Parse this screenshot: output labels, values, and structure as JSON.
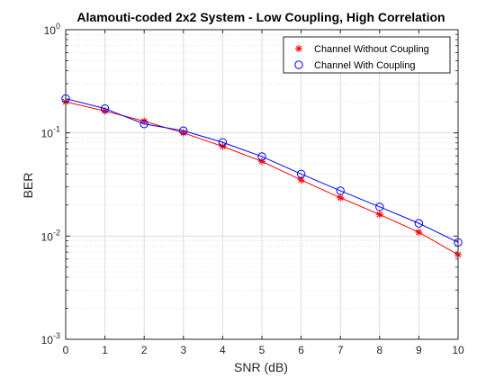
{
  "chart_data": {
    "type": "line",
    "title": "Alamouti-coded 2x2 System - Low Coupling, High Correlation",
    "xlabel": "SNR (dB)",
    "ylabel": "BER",
    "xlim": [
      0,
      10
    ],
    "ylim": [
      0.001,
      1
    ],
    "yscale": "log",
    "grid": true,
    "minor_grid": true,
    "legend_location": "top-right",
    "x": [
      0,
      1,
      2,
      3,
      4,
      5,
      6,
      7,
      8,
      9,
      10
    ],
    "x_tick_labels": [
      "0",
      "1",
      "2",
      "3",
      "4",
      "5",
      "6",
      "7",
      "8",
      "9",
      "10"
    ],
    "y_tick_labels": [
      {
        "base": "10",
        "exp": "-3",
        "value": 0.001
      },
      {
        "base": "10",
        "exp": "-2",
        "value": 0.01
      },
      {
        "base": "10",
        "exp": "-1",
        "value": 0.1
      },
      {
        "base": "10",
        "exp": "0",
        "value": 1
      }
    ],
    "series": [
      {
        "name": "Channel Without Coupling",
        "color": "#ff0000",
        "marker": "asterisk",
        "values": [
          0.2,
          0.163,
          0.13,
          0.1,
          0.074,
          0.053,
          0.035,
          0.0235,
          0.0162,
          0.0109,
          0.0066
        ]
      },
      {
        "name": "Channel With Coupling",
        "color": "#0000ff",
        "marker": "circle",
        "values": [
          0.215,
          0.172,
          0.122,
          0.105,
          0.081,
          0.059,
          0.04,
          0.0275,
          0.0192,
          0.0133,
          0.0087
        ]
      }
    ]
  }
}
